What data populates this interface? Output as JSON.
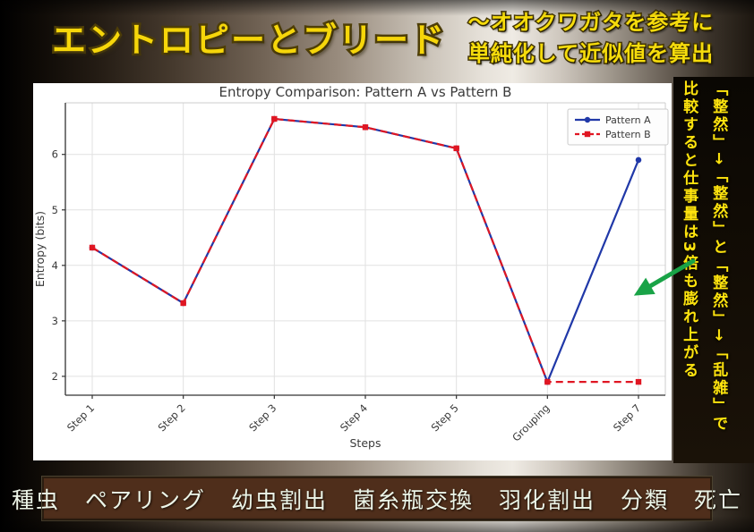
{
  "slide": {
    "title": "エントロピーとブリード",
    "subtitle": {
      "line1": "〜オオクワガタを参考に",
      "line2": "単純化して近似値を算出"
    },
    "side_note": {
      "line1": "「整然」→「整然」と「整然」→「乱雑」で",
      "line2": "比較すると仕事量は3倍も膨れ上がる"
    },
    "bottom_bar": {
      "items": [
        "種虫",
        "ペアリング",
        "幼虫割出",
        "菌糸瓶交換",
        "羽化割出",
        "分類",
        "死亡"
      ]
    },
    "colors": {
      "title_yellow": "#f6d60a",
      "note_yellow": "#ffe40e",
      "arrow_green": "#19a347",
      "bottom_bar_brown": "#4f2e1b",
      "bottom_bar_text": "#ecf5e8",
      "pattern_a_blue": "#2038a8",
      "pattern_b_red": "#e01622"
    }
  },
  "chart_data": {
    "type": "line",
    "title": "Entropy Comparison: Pattern A vs Pattern B",
    "xlabel": "Steps",
    "ylabel": "Entropy (bits)",
    "categories": [
      "Step 1",
      "Step 2",
      "Step 3",
      "Step 4",
      "Step 5",
      "Grouping",
      "Step 7"
    ],
    "series": [
      {
        "name": "Pattern A",
        "color": "#2038a8",
        "marker": "circle",
        "style": "solid",
        "values": [
          4.32,
          3.32,
          6.64,
          6.49,
          6.11,
          1.9,
          5.9
        ]
      },
      {
        "name": "Pattern B",
        "color": "#e01622",
        "marker": "square",
        "style": "dashed",
        "values": [
          4.32,
          3.32,
          6.64,
          6.49,
          6.11,
          1.9,
          1.9
        ]
      }
    ],
    "ylim": [
      1.66,
      6.93
    ],
    "yticks": [
      2,
      3,
      4,
      5,
      6
    ],
    "grid": true,
    "legend_position": "upper right"
  }
}
